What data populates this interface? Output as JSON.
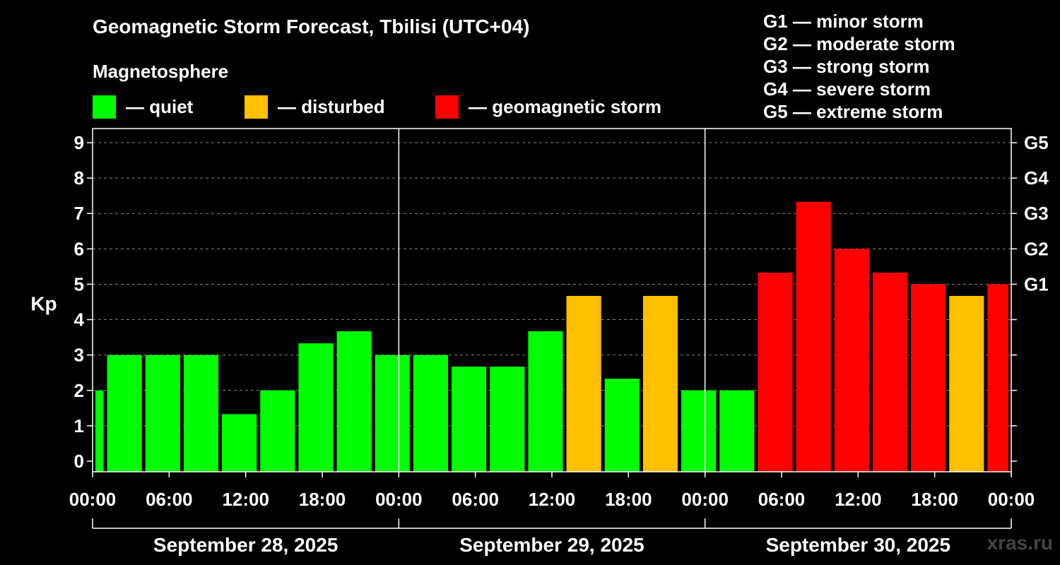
{
  "chart_data": {
    "type": "bar",
    "title": "Geomagnetic Storm Forecast, Tbilisi (UTC+04)",
    "subtitle": "Magnetosphere",
    "ylabel": "Kp",
    "xlabel": "",
    "ylim": [
      -0.3,
      9.4
    ],
    "y_ticks": [
      "0",
      "1",
      "2",
      "3",
      "4",
      "5",
      "6",
      "7",
      "8",
      "9"
    ],
    "x_range_hours": [
      0,
      72
    ],
    "x_tick_labels": [
      "00:00",
      "06:00",
      "12:00",
      "18:00",
      "00:00",
      "06:00",
      "12:00",
      "18:00",
      "00:00",
      "06:00",
      "12:00",
      "18:00",
      "00:00"
    ],
    "day_labels": [
      "September 28, 2025",
      "September 29, 2025",
      "September 30, 2025"
    ],
    "right_axis_labels": [
      {
        "kp": 5,
        "label": "G1"
      },
      {
        "kp": 6,
        "label": "G2"
      },
      {
        "kp": 7,
        "label": "G3"
      },
      {
        "kp": 8,
        "label": "G4"
      },
      {
        "kp": 9,
        "label": "G5"
      }
    ],
    "legend": [
      {
        "label": "— quiet",
        "color": "#00ff00"
      },
      {
        "label": "— disturbed",
        "color": "#ffc000"
      },
      {
        "label": "— geomagnetic storm",
        "color": "#ff0000"
      }
    ],
    "storm_levels": [
      "G1 — minor storm",
      "G2 — moderate storm",
      "G3 — strong storm",
      "G4 — severe storm",
      "G5 — extreme storm"
    ],
    "bars": [
      {
        "start": 0,
        "end": 1,
        "kp": 2.0,
        "status": "quiet"
      },
      {
        "start": 1,
        "end": 4,
        "kp": 3.0,
        "status": "quiet"
      },
      {
        "start": 4,
        "end": 7,
        "kp": 3.0,
        "status": "quiet"
      },
      {
        "start": 7,
        "end": 10,
        "kp": 3.0,
        "status": "quiet"
      },
      {
        "start": 10,
        "end": 13,
        "kp": 1.33,
        "status": "quiet"
      },
      {
        "start": 13,
        "end": 16,
        "kp": 2.0,
        "status": "quiet"
      },
      {
        "start": 16,
        "end": 19,
        "kp": 3.33,
        "status": "quiet"
      },
      {
        "start": 19,
        "end": 22,
        "kp": 3.67,
        "status": "quiet"
      },
      {
        "start": 22,
        "end": 25,
        "kp": 3.0,
        "status": "quiet"
      },
      {
        "start": 25,
        "end": 28,
        "kp": 3.0,
        "status": "quiet"
      },
      {
        "start": 28,
        "end": 31,
        "kp": 2.67,
        "status": "quiet"
      },
      {
        "start": 31,
        "end": 34,
        "kp": 2.67,
        "status": "quiet"
      },
      {
        "start": 34,
        "end": 37,
        "kp": 3.67,
        "status": "quiet"
      },
      {
        "start": 37,
        "end": 40,
        "kp": 4.67,
        "status": "disturbed"
      },
      {
        "start": 40,
        "end": 43,
        "kp": 2.33,
        "status": "quiet"
      },
      {
        "start": 43,
        "end": 46,
        "kp": 4.67,
        "status": "disturbed"
      },
      {
        "start": 46,
        "end": 49,
        "kp": 2.0,
        "status": "quiet"
      },
      {
        "start": 49,
        "end": 52,
        "kp": 2.0,
        "status": "quiet"
      },
      {
        "start": 52,
        "end": 55,
        "kp": 5.33,
        "status": "storm"
      },
      {
        "start": 55,
        "end": 58,
        "kp": 7.33,
        "status": "storm"
      },
      {
        "start": 58,
        "end": 61,
        "kp": 6.0,
        "status": "storm"
      },
      {
        "start": 61,
        "end": 64,
        "kp": 5.33,
        "status": "storm"
      },
      {
        "start": 64,
        "end": 67,
        "kp": 5.0,
        "status": "storm"
      },
      {
        "start": 67,
        "end": 70,
        "kp": 4.67,
        "status": "disturbed"
      },
      {
        "start": 70,
        "end": 72,
        "kp": 5.0,
        "status": "storm"
      }
    ],
    "status_colors": {
      "quiet": "#00ff00",
      "disturbed": "#ffc000",
      "storm": "#ff0000"
    },
    "grid": true
  },
  "watermark": "xras.ru"
}
